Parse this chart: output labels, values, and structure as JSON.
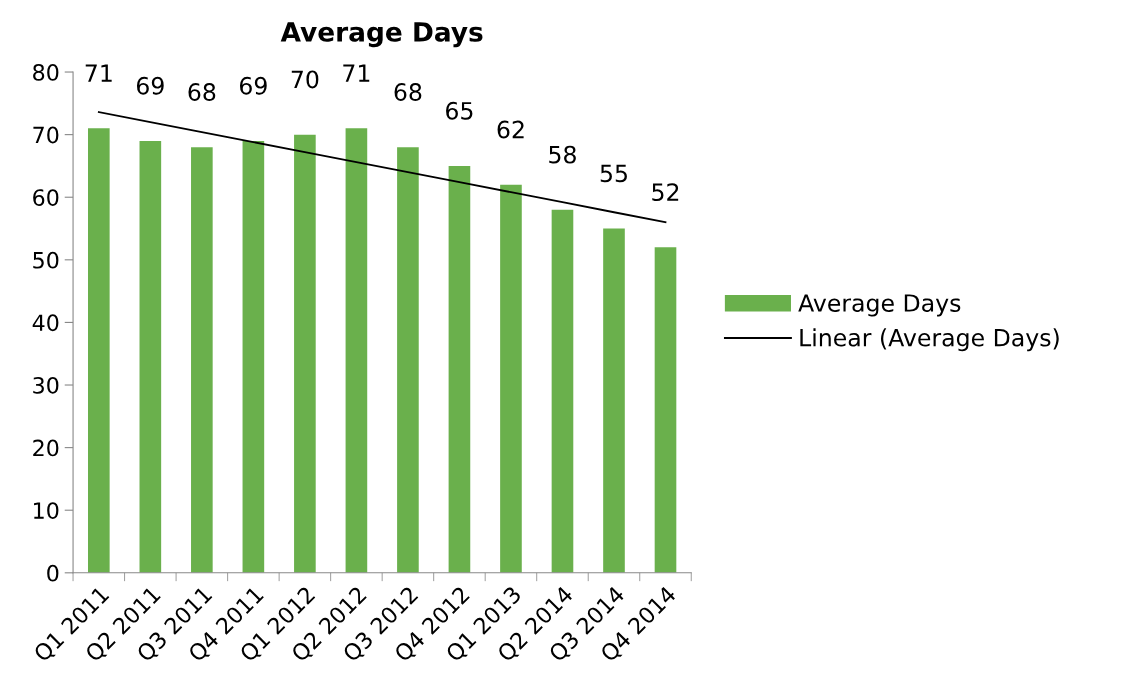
{
  "chart_data": {
    "type": "bar",
    "title": "Average Days",
    "categories": [
      "Q1 2011",
      "Q2 2011",
      "Q3 2011",
      "Q4 2011",
      "Q1 2012",
      "Q2 2012",
      "Q3 2012",
      "Q4 2012",
      "Q1 2013",
      "Q2 2014",
      "Q3 2014",
      "Q4 2014"
    ],
    "series": [
      {
        "name": "Average Days",
        "color": "#6ab04c",
        "values": [
          71,
          69,
          68,
          69,
          70,
          71,
          68,
          65,
          62,
          58,
          55,
          52
        ],
        "data_labels": true
      },
      {
        "name": "Linear (Average Days)",
        "type": "line",
        "color": "#000000",
        "values": [
          73.6,
          72.0,
          70.4,
          68.8,
          67.2,
          65.6,
          64.0,
          62.4,
          60.8,
          59.2,
          57.6,
          56.0
        ]
      }
    ],
    "ylim": [
      0,
      80
    ],
    "yticks": [
      0,
      10,
      20,
      30,
      40,
      50,
      60,
      70,
      80
    ],
    "grid": false,
    "legend": "right"
  }
}
